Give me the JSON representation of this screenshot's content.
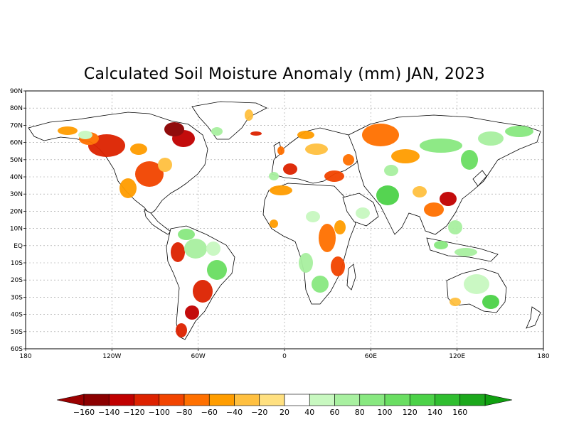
{
  "title": "Calculated Soil Moisture Anomaly (mm) JAN, 2023",
  "map": {
    "lat_labels": [
      "90N",
      "80N",
      "70N",
      "60N",
      "50N",
      "40N",
      "30N",
      "20N",
      "10N",
      "EQ",
      "10S",
      "20S",
      "30S",
      "40S",
      "50S",
      "60S"
    ],
    "lon_labels": [
      "180",
      "120W",
      "60W",
      "0",
      "60E",
      "120E",
      "180"
    ],
    "gridlines": true
  },
  "colorbar": {
    "labels": [
      "-160",
      "-140",
      "-120",
      "-100",
      "-80",
      "-60",
      "-40",
      "-20",
      "20",
      "40",
      "60",
      "80",
      "100",
      "120",
      "140",
      "160"
    ],
    "colors": [
      "#8b0000",
      "#c00000",
      "#dd2200",
      "#f24400",
      "#ff7000",
      "#ff9d00",
      "#ffc040",
      "#ffe080",
      "#ffffff",
      "#c8f8c0",
      "#a8f0a0",
      "#88e880",
      "#6ade62",
      "#4cd248",
      "#30be30",
      "#1ca81c"
    ],
    "extend_low_color": "#9b0000",
    "extend_high_color": "#10a010"
  }
}
